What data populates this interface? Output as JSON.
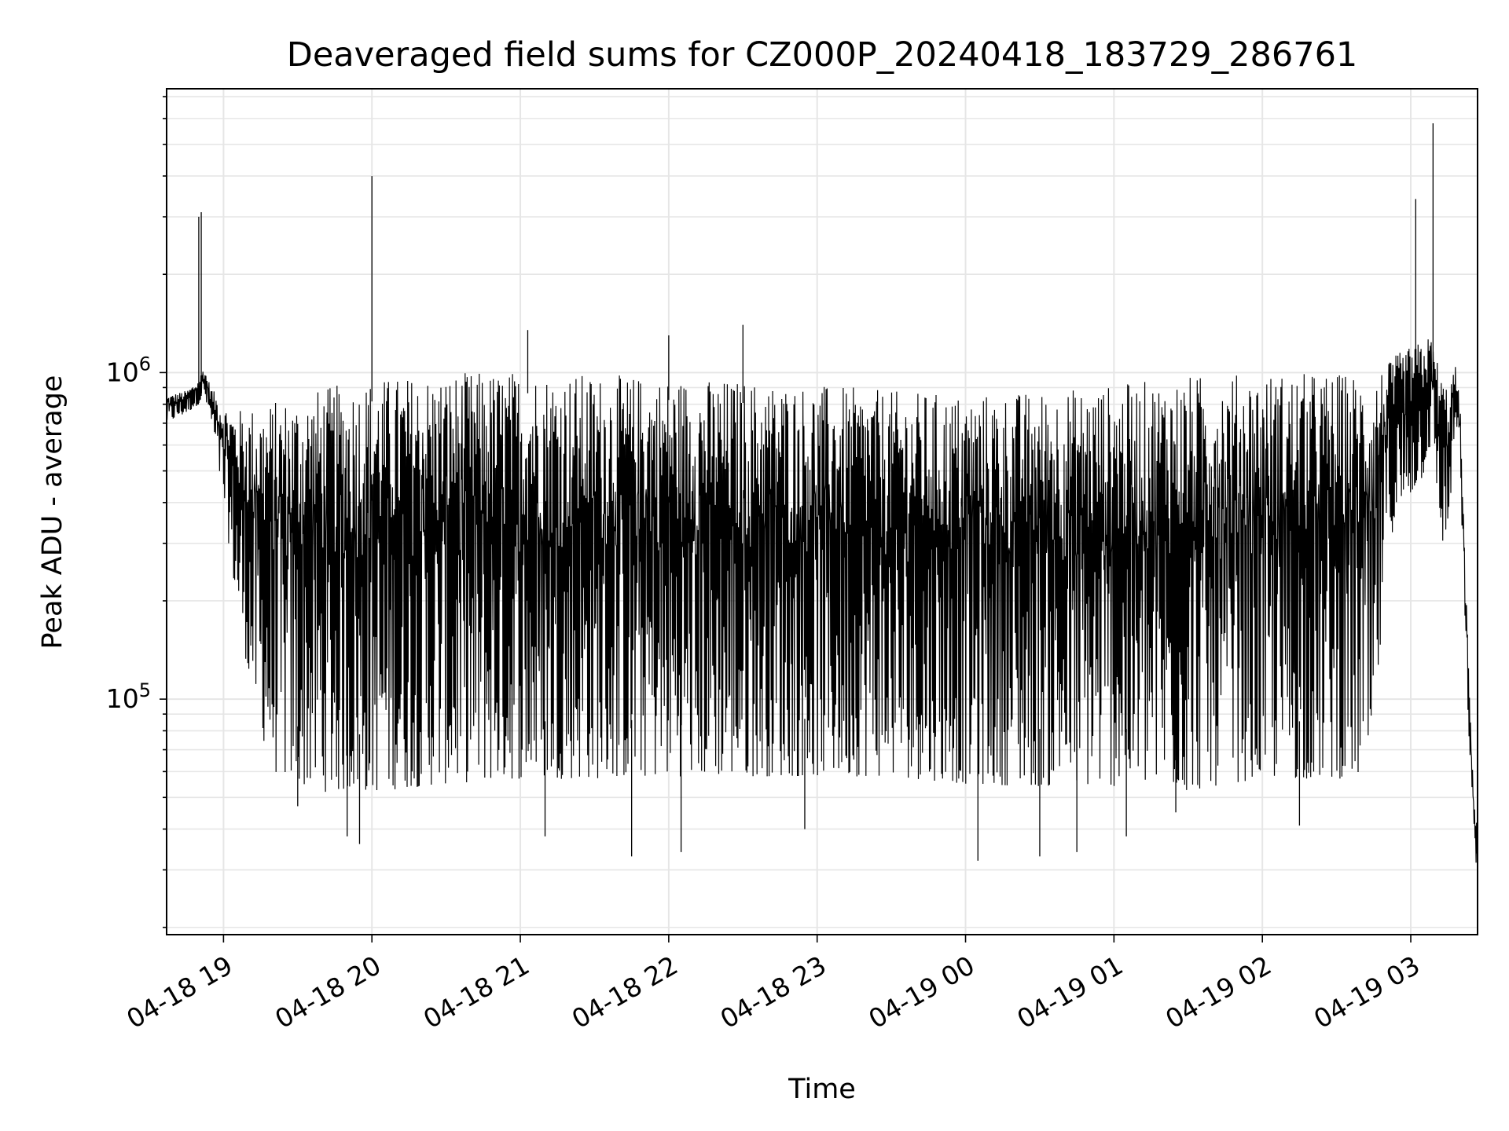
{
  "chart_data": {
    "type": "line",
    "title": "Deaveraged field sums for CZ000P_20240418_183729_286761",
    "xlabel": "Time",
    "ylabel": "Peak ADU - average",
    "x_date": "2024-04-18",
    "xlim": [
      "04-18 18:37",
      "04-19 03:27"
    ],
    "ylim": [
      19000,
      7400000
    ],
    "yscale": "log",
    "grid": true,
    "line_color": "#000000",
    "x_ticks": [
      "04-18 19",
      "04-18 20",
      "04-18 21",
      "04-18 22",
      "04-18 23",
      "04-19 00",
      "04-19 01",
      "04-19 02",
      "04-19 03"
    ],
    "y_ticks": [
      {
        "value": 100000,
        "label_base": "10",
        "label_exp": "5"
      },
      {
        "value": 1000000,
        "label_base": "10",
        "label_exp": "6"
      }
    ],
    "series": [
      {
        "envelope": {
          "x": [
            "18:37",
            "18:45",
            "18:50",
            "18:52",
            "18:55",
            "19:00",
            "19:05",
            "19:10",
            "19:15",
            "19:20",
            "19:30",
            "19:40",
            "19:50",
            "20:00",
            "20:30",
            "21:00",
            "21:30",
            "22:00",
            "22:30",
            "23:00",
            "23:30",
            "00:00",
            "00:30",
            "01:00",
            "01:20",
            "01:30",
            "01:45",
            "02:00",
            "02:30",
            "02:45",
            "02:50",
            "02:55",
            "03:00",
            "03:05",
            "03:08",
            "03:10",
            "03:12",
            "03:15",
            "03:18",
            "03:20",
            "03:22",
            "03:25",
            "03:27"
          ],
          "upper": [
            850000,
            880000,
            950000,
            1050000,
            900000,
            800000,
            770000,
            780000,
            800000,
            820000,
            860000,
            900000,
            930000,
            960000,
            1000000,
            1020000,
            990000,
            970000,
            950000,
            920000,
            880000,
            860000,
            880000,
            920000,
            960000,
            980000,
            990000,
            1000000,
            1000000,
            1000000,
            1050000,
            1150000,
            1200000,
            1250000,
            1300000,
            1150000,
            1000000,
            900000,
            1050000,
            800000,
            250000,
            60000,
            40000
          ],
          "lower": [
            700000,
            750000,
            800000,
            850000,
            700000,
            400000,
            200000,
            120000,
            80000,
            60000,
            55000,
            52000,
            52000,
            52000,
            55000,
            57000,
            57000,
            58000,
            58000,
            58000,
            58000,
            55000,
            54000,
            54000,
            54000,
            52000,
            55000,
            57000,
            57000,
            58000,
            300000,
            350000,
            420000,
            480000,
            600000,
            500000,
            300000,
            300000,
            700000,
            500000,
            150000,
            40000,
            28000
          ]
        },
        "spikes": [
          {
            "x": "18:50",
            "y": 3000000
          },
          {
            "x": "18:51",
            "y": 3100000
          },
          {
            "x": "20:00",
            "y": 4000000
          },
          {
            "x": "21:03",
            "y": 1350000
          },
          {
            "x": "22:00",
            "y": 1300000
          },
          {
            "x": "22:30",
            "y": 1400000
          },
          {
            "x": "03:02",
            "y": 3400000
          },
          {
            "x": "03:09",
            "y": 5800000
          },
          {
            "x": "19:30",
            "y": 47000
          },
          {
            "x": "19:50",
            "y": 38000
          },
          {
            "x": "19:55",
            "y": 36000
          },
          {
            "x": "21:10",
            "y": 38000
          },
          {
            "x": "21:45",
            "y": 33000
          },
          {
            "x": "22:05",
            "y": 34000
          },
          {
            "x": "22:55",
            "y": 40000
          },
          {
            "x": "00:05",
            "y": 32000
          },
          {
            "x": "00:30",
            "y": 33000
          },
          {
            "x": "00:45",
            "y": 34000
          },
          {
            "x": "01:05",
            "y": 38000
          },
          {
            "x": "01:25",
            "y": 45000
          },
          {
            "x": "02:15",
            "y": 41000
          }
        ]
      }
    ]
  }
}
